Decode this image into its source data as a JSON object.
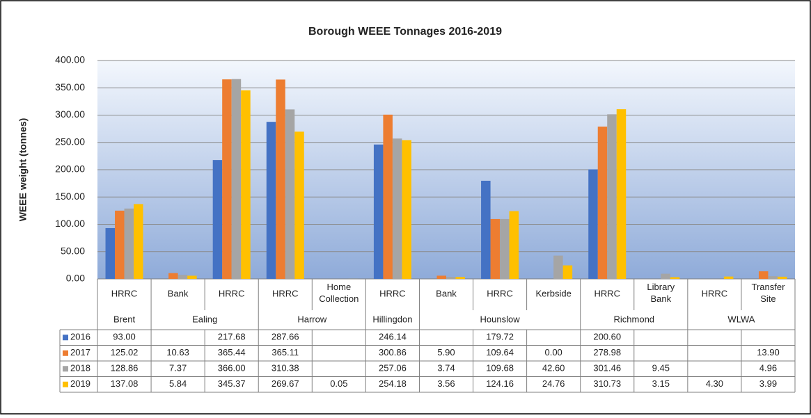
{
  "chart_data": {
    "type": "bar",
    "title": "Borough WEEE Tonnages 2016-2019",
    "y_label": "WEEE weight (tonnes)",
    "groups": [
      {
        "name": "Brent",
        "categories": [
          "HRRC"
        ]
      },
      {
        "name": "Ealing",
        "categories": [
          "Bank",
          "HRRC"
        ]
      },
      {
        "name": "Harrow",
        "categories": [
          "HRRC",
          "Home Collection"
        ]
      },
      {
        "name": "Hillingdon",
        "categories": [
          "HRRC"
        ]
      },
      {
        "name": "Hounslow",
        "categories": [
          "Bank",
          "HRRC",
          "Kerbside"
        ]
      },
      {
        "name": "Richmond",
        "categories": [
          "HRRC",
          "Library Bank"
        ]
      },
      {
        "name": "WLWA",
        "categories": [
          "HRRC",
          "Transfer Site"
        ]
      }
    ],
    "series": [
      {
        "name": "2016",
        "color": "#4472c4",
        "values": [
          93,
          null,
          217.68,
          287.66,
          null,
          246.14,
          null,
          179.72,
          null,
          200.6,
          null,
          null,
          null
        ],
        "value_labels": [
          "93.00",
          null,
          "217.68",
          "287.66",
          null,
          "246.14",
          null,
          "179.72",
          null,
          "200.60",
          null,
          null,
          null
        ]
      },
      {
        "name": "2017",
        "color": "#ed7d31",
        "values": [
          125.02,
          10.63,
          365.44,
          365.11,
          null,
          300.86,
          5.9,
          109.64,
          0,
          278.98,
          null,
          null,
          13.9
        ],
        "value_labels": [
          "125.02",
          "10.63",
          "365.44",
          "365.11",
          null,
          "300.86",
          "5.90",
          "109.64",
          "0.00",
          "278.98",
          null,
          null,
          "13.90"
        ]
      },
      {
        "name": "2018",
        "color": "#a5a5a5",
        "values": [
          128.86,
          7.37,
          366,
          310.38,
          null,
          257.06,
          3.74,
          109.68,
          42.6,
          301.46,
          9.45,
          null,
          4.96
        ],
        "value_labels": [
          "128.86",
          "7.37",
          "366.00",
          "310.38",
          null,
          "257.06",
          "3.74",
          "109.68",
          "42.60",
          "301.46",
          "9.45",
          null,
          "4.96"
        ]
      },
      {
        "name": "2019",
        "color": "#ffc000",
        "values": [
          137.08,
          5.84,
          345.37,
          269.67,
          0.05,
          254.18,
          3.56,
          124.16,
          24.76,
          310.73,
          3.15,
          4.3,
          3.99
        ],
        "value_labels": [
          "137.08",
          "5.84",
          "345.37",
          "269.67",
          "0.05",
          "254.18",
          "3.56",
          "124.16",
          "24.76",
          "310.73",
          "3.15",
          "4.30",
          "3.99"
        ]
      }
    ],
    "ylim": [
      0,
      400
    ],
    "yticks": [
      {
        "value": 0,
        "label": "0.00"
      },
      {
        "value": 50,
        "label": "50.00"
      },
      {
        "value": 100,
        "label": "100.00"
      },
      {
        "value": 150,
        "label": "150.00"
      },
      {
        "value": 200,
        "label": "200.00"
      },
      {
        "value": 250,
        "label": "250.00"
      },
      {
        "value": 300,
        "label": "300.00"
      },
      {
        "value": 350,
        "label": "350.00"
      },
      {
        "value": 400,
        "label": "400.00"
      }
    ],
    "grid": true
  }
}
